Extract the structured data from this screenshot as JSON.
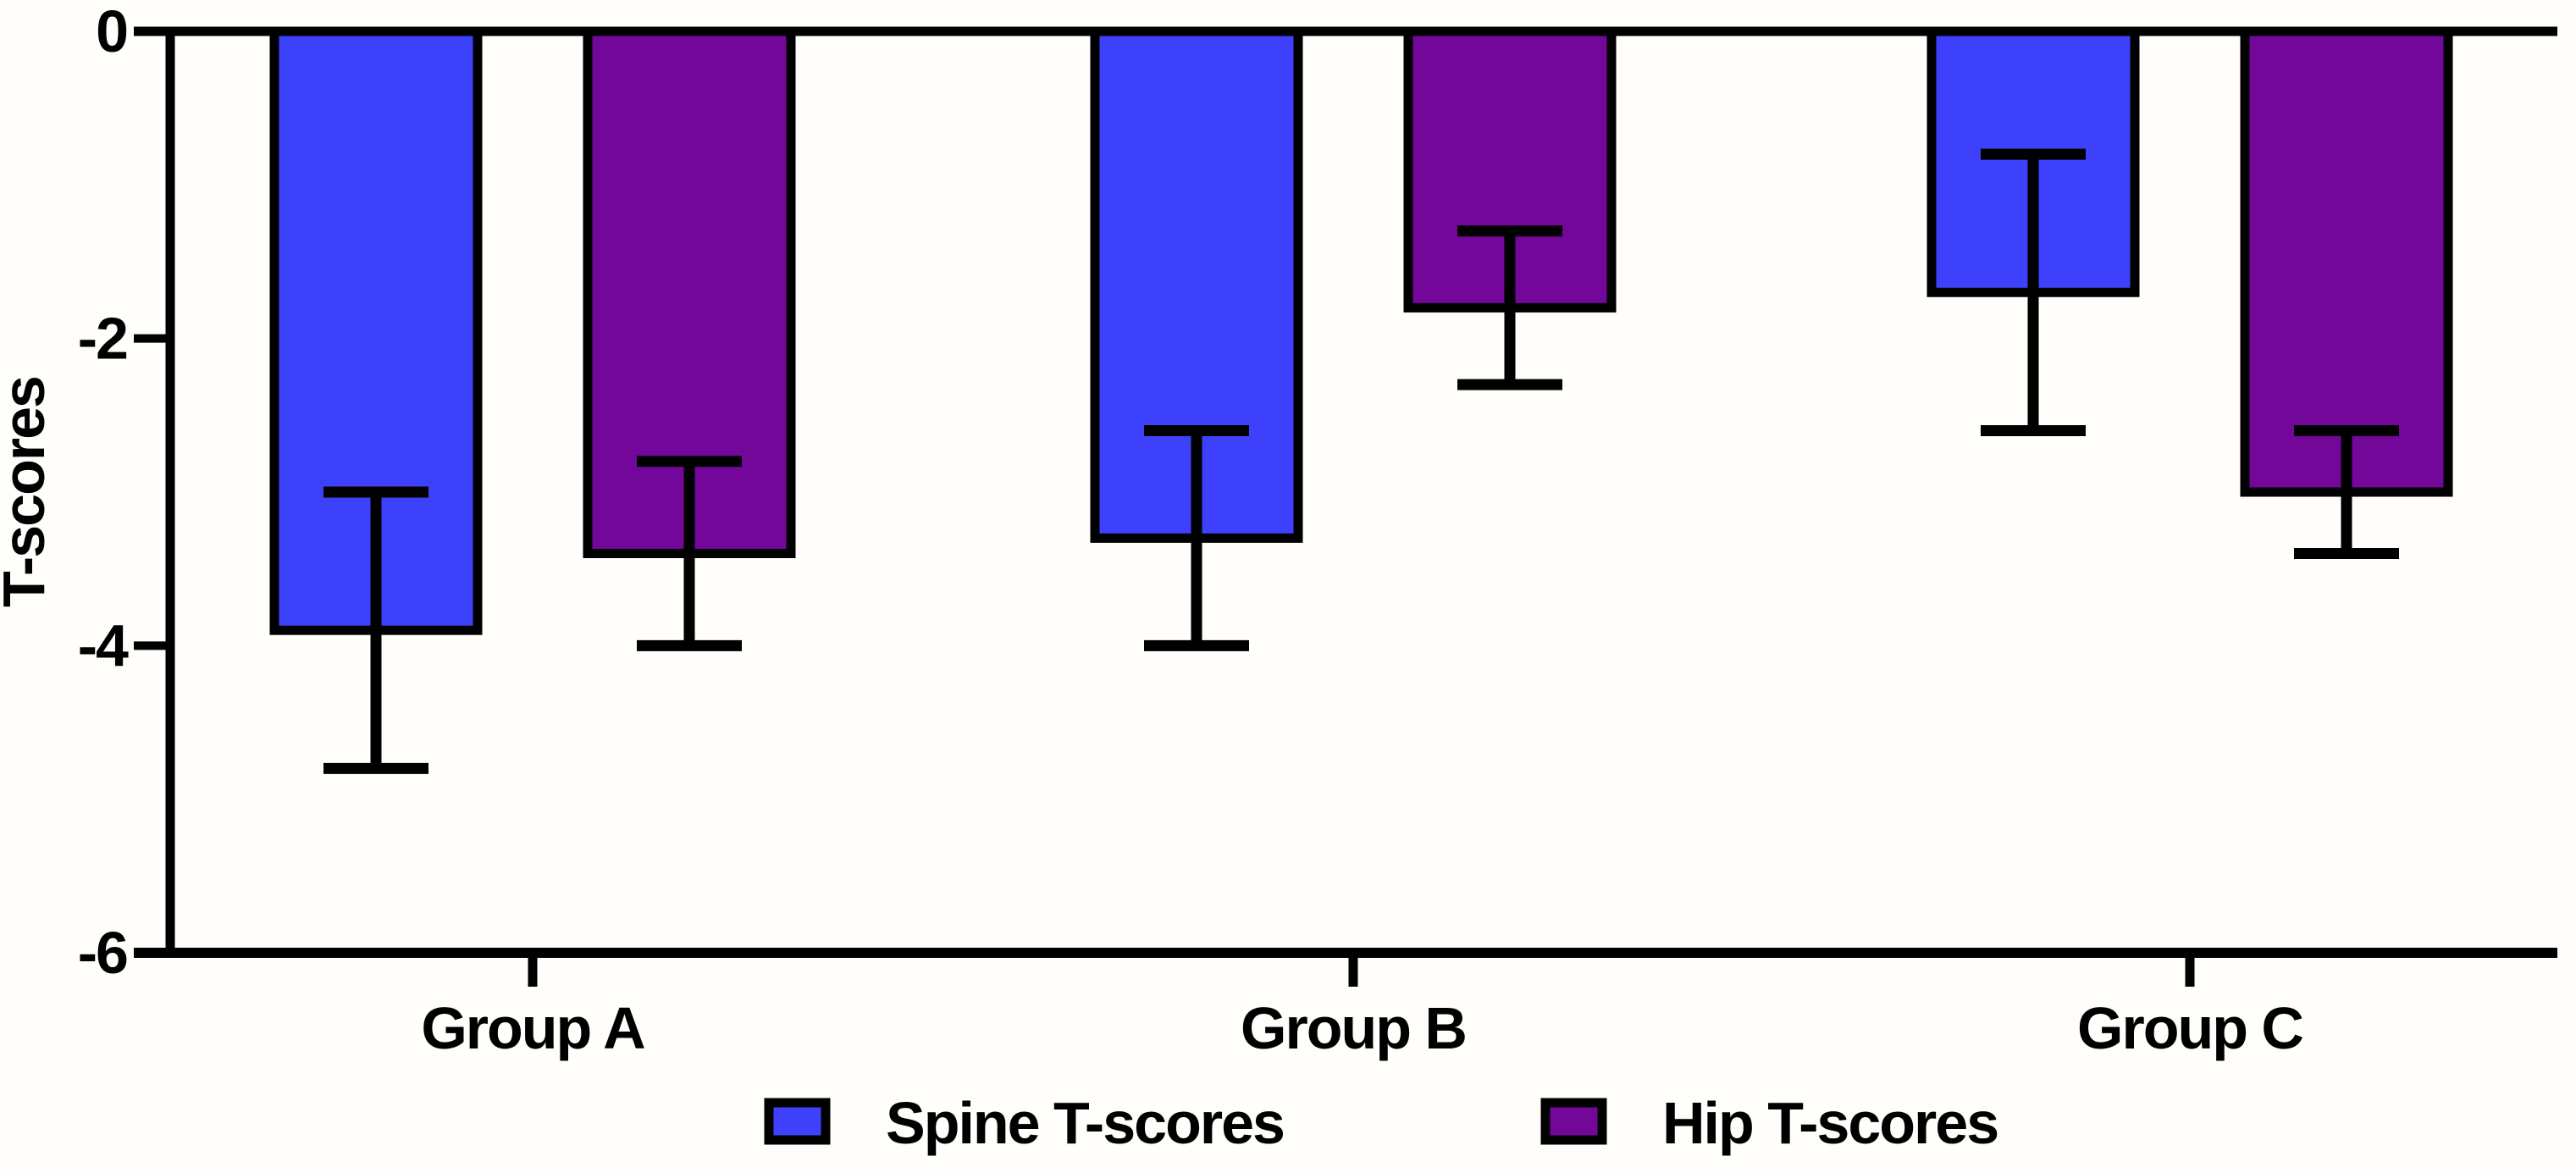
{
  "figure": {
    "background": "#fffefb",
    "ink_color": "#000000"
  },
  "chart_data": {
    "type": "bar",
    "title": "",
    "xlabel": "",
    "ylabel": "T-scores",
    "orientation": "vertical-negative",
    "categories": [
      "Group A",
      "Group B",
      "Group C"
    ],
    "series": [
      {
        "name": "Spine T-scores",
        "color": "#3e41fb",
        "values": [
          -3.9,
          -3.3,
          -1.7
        ],
        "errors": [
          0.9,
          0.7,
          0.9
        ]
      },
      {
        "name": "Hip T-scores",
        "color": "#730799",
        "values": [
          -3.4,
          -1.8,
          -3.0
        ],
        "errors": [
          0.6,
          0.5,
          0.4
        ]
      }
    ],
    "error_bar_caps": {
      "spine": {
        "Group A": [
          -3.0,
          -4.8
        ],
        "Group B": [
          -2.6,
          -4.0
        ],
        "Group C": [
          -0.8,
          -2.6
        ]
      },
      "hip": {
        "Group A": [
          -2.8,
          -4.0
        ],
        "Group B": [
          -1.3,
          -2.3
        ],
        "Group C": [
          -2.6,
          -3.4
        ]
      }
    },
    "ylim": [
      -6,
      0
    ],
    "yticks": [
      "0",
      "-2",
      "-4",
      "-6"
    ],
    "ytick_values": [
      0,
      -2,
      -4,
      -6
    ],
    "grid": false,
    "legend_position": "bottom-center",
    "bar_outline_color": "#000000"
  }
}
